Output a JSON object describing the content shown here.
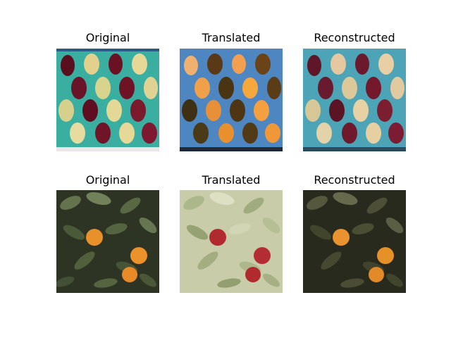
{
  "figure": {
    "rows": [
      {
        "panels": [
          {
            "title": "Original",
            "scene": "apples-tray",
            "variant": "original"
          },
          {
            "title": "Translated",
            "scene": "apples-tray",
            "variant": "translated"
          },
          {
            "title": "Reconstructed",
            "scene": "apples-tray",
            "variant": "reconstructed"
          }
        ]
      },
      {
        "panels": [
          {
            "title": "Original",
            "scene": "orange-tree",
            "variant": "original"
          },
          {
            "title": "Translated",
            "scene": "orange-tree",
            "variant": "translated"
          },
          {
            "title": "Reconstructed",
            "scene": "orange-tree",
            "variant": "reconstructed"
          }
        ]
      }
    ]
  }
}
